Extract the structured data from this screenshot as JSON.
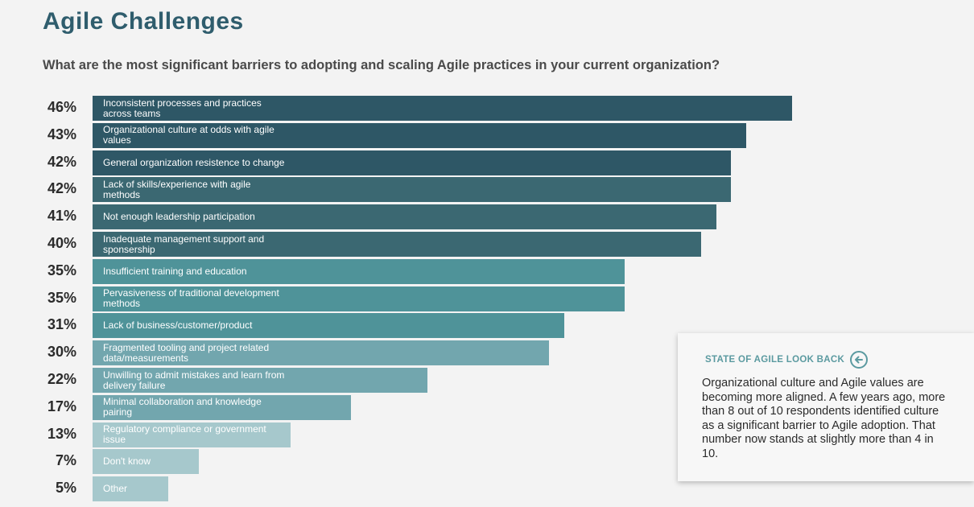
{
  "title": "Agile Challenges",
  "subtitle": "What are the most significant barriers to adopting and scaling Agile practices in your current organization?",
  "chart_data": {
    "type": "bar",
    "orientation": "horizontal",
    "categories": [
      "Inconsistent processes and practices across teams",
      "Organizational culture at odds with agile values",
      "General organization resistence to change",
      "Lack of skills/experience with agile methods",
      "Not enough leadership participation",
      "Inadequate management support and sponsership",
      "Insufficient training and education",
      "Pervasiveness of traditional development methods",
      "Lack of business/customer/product",
      "Fragmented tooling and project related data/measurements",
      "Unwilling to admit mistakes and learn from delivery failure",
      "Minimal collaboration and knowledge pairing",
      "Regulatory compliance or government issue",
      "Don't know",
      "Other"
    ],
    "values": [
      46,
      43,
      42,
      42,
      41,
      40,
      35,
      35,
      31,
      30,
      22,
      17,
      13,
      7,
      5
    ],
    "value_labels": [
      "46%",
      "43%",
      "42%",
      "42%",
      "41%",
      "40%",
      "35%",
      "35%",
      "31%",
      "30%",
      "22%",
      "17%",
      "13%",
      "7%",
      "5%"
    ],
    "colors": [
      "#2e5766",
      "#2e5766",
      "#2e5766",
      "#3b6872",
      "#3b6872",
      "#3b6872",
      "#4f9399",
      "#4f9399",
      "#4f9399",
      "#72a6ae",
      "#72a6ae",
      "#72a6ae",
      "#a6c8cc",
      "#a6c8cc",
      "#a6c8cc"
    ],
    "xlim": [
      0,
      46
    ]
  },
  "callout": {
    "heading": "STATE OF AGILE LOOK BACK",
    "icon": "arrow-left-circle-icon",
    "body": "Organizational culture and Agile values are becoming more aligned. A few years ago, more than 8 out of 10 respondents identified culture as a significant barrier to Agile adoption. That number now stands at slightly more than 4 in 10."
  }
}
